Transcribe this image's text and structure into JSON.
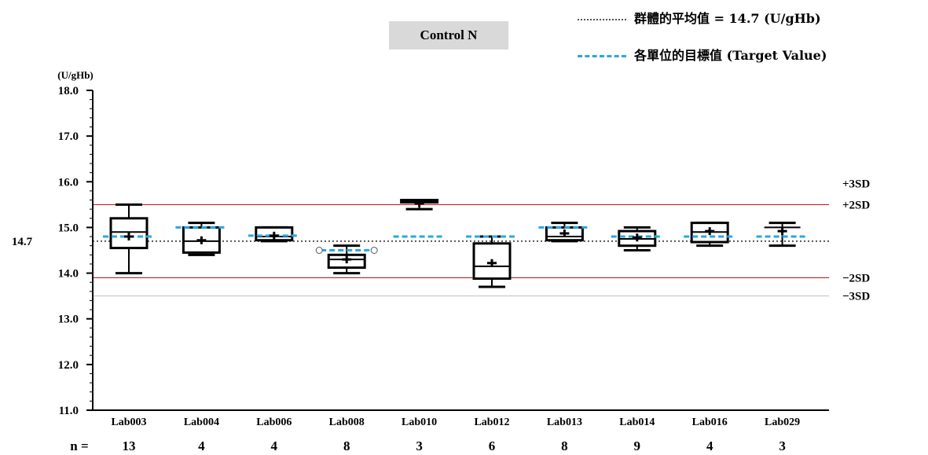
{
  "legend": {
    "mean_label": "群體的平均值 = 14.7 (U/gHb)",
    "target_label": "各單位的目標值 (Target Value)"
  },
  "panel_title": "Control N",
  "chart_data": {
    "type": "boxplot",
    "ylabel": "(U/gHb)",
    "ylim": [
      11.0,
      18.0
    ],
    "yticks": [
      "11.0",
      "12.0",
      "13.0",
      "14.0",
      "15.0",
      "16.0",
      "17.0",
      "18.0"
    ],
    "group_mean": 14.7,
    "group_mean_label": "14.7",
    "n_label": "n =",
    "sd_lines": [
      {
        "label": "+3SD",
        "value": 15.5,
        "color": "#bfbfbf"
      },
      {
        "label": "+2SD",
        "value": 15.5,
        "color": "#c00000"
      },
      {
        "label": "−2SD",
        "value": 13.9,
        "color": "#c00000"
      },
      {
        "label": "−3SD",
        "value": 13.5,
        "color": "#bfbfbf"
      }
    ],
    "categories": [
      "Lab003",
      "Lab004",
      "Lab006",
      "Lab008",
      "Lab010",
      "Lab012",
      "Lab013",
      "Lab014",
      "Lab016",
      "Lab029"
    ],
    "n": [
      "13",
      "4",
      "4",
      "8",
      "3",
      "6",
      "8",
      "9",
      "4",
      "3"
    ],
    "boxes": [
      {
        "min": 14.0,
        "q1": 14.55,
        "median": 14.9,
        "q3": 15.2,
        "max": 15.5,
        "mean": 14.8,
        "target": 14.8
      },
      {
        "min": 14.4,
        "q1": 14.45,
        "median": 14.7,
        "q3": 15.0,
        "max": 15.1,
        "mean": 14.72,
        "target": 15.0
      },
      {
        "min": 14.7,
        "q1": 14.72,
        "median": 14.8,
        "q3": 15.0,
        "max": 15.0,
        "mean": 14.82,
        "target": 14.82
      },
      {
        "min": 14.0,
        "q1": 14.12,
        "median": 14.3,
        "q3": 14.4,
        "max": 14.6,
        "mean": 14.3,
        "target": 14.5,
        "target_hollow": true
      },
      {
        "min": 15.4,
        "q1": 15.55,
        "median": 15.55,
        "q3": 15.6,
        "max": 15.6,
        "mean": 15.53,
        "target": 14.8
      },
      {
        "min": 13.7,
        "q1": 13.88,
        "median": 14.15,
        "q3": 14.65,
        "max": 14.8,
        "mean": 14.22,
        "target": 14.8
      },
      {
        "min": 14.7,
        "q1": 14.72,
        "median": 14.8,
        "q3": 15.0,
        "max": 15.1,
        "mean": 14.87,
        "target": 15.0
      },
      {
        "min": 14.5,
        "q1": 14.6,
        "median": 14.75,
        "q3": 14.92,
        "max": 15.0,
        "mean": 14.78,
        "target": 14.8
      },
      {
        "min": 14.6,
        "q1": 14.68,
        "median": 14.9,
        "q3": 15.1,
        "max": 15.1,
        "mean": 14.92,
        "target": 14.8
      },
      {
        "min": 14.6,
        "q1": 14.9,
        "median": 15.0,
        "q3": 15.0,
        "max": 15.1,
        "mean": 14.92,
        "target": 14.8,
        "no_box": true
      }
    ]
  },
  "colors": {
    "sd2": "#c00000",
    "sd3": "#bfbfbf",
    "target": "#29a8e0",
    "mean_line": "#555555",
    "box": "#000000"
  }
}
